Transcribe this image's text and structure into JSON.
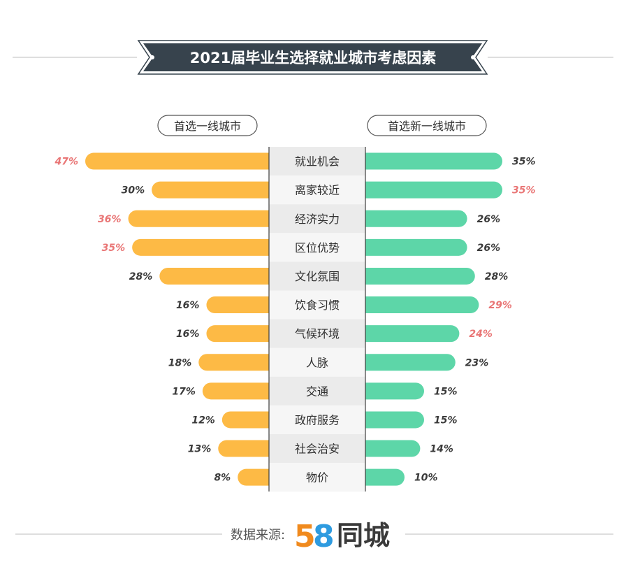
{
  "chart_data": {
    "type": "bar",
    "title": "2021届毕业生选择就业城市考虑因素",
    "categories": [
      "就业机会",
      "离家较近",
      "经济实力",
      "区位优势",
      "文化氛围",
      "饮食习惯",
      "气候环境",
      "人脉",
      "交通",
      "政府服务",
      "社会治安",
      "物价"
    ],
    "series": [
      {
        "name": "首选一线城市",
        "values": [
          47,
          30,
          36,
          35,
          28,
          16,
          16,
          18,
          17,
          12,
          13,
          8
        ],
        "labels": [
          "47%",
          "30%",
          "36%",
          "35%",
          "28%",
          "16%",
          "16%",
          "18%",
          "17%",
          "12%",
          "13%",
          "8%"
        ],
        "highlighted": [
          true,
          false,
          true,
          true,
          false,
          false,
          false,
          false,
          false,
          false,
          false,
          false
        ],
        "color": "#FDBA45"
      },
      {
        "name": "首选新一线城市",
        "values": [
          35,
          35,
          26,
          26,
          28,
          29,
          24,
          23,
          15,
          15,
          14,
          10
        ],
        "labels": [
          "35%",
          "35%",
          "26%",
          "26%",
          "28%",
          "29%",
          "24%",
          "23%",
          "15%",
          "15%",
          "14%",
          "10%"
        ],
        "highlighted": [
          false,
          true,
          false,
          false,
          false,
          true,
          true,
          false,
          false,
          false,
          false,
          false
        ],
        "color": "#5DD6A8"
      }
    ],
    "value_label_color": "#3A3A3A",
    "highlight_label_color": "#E97575",
    "title_banner_color": "#37434D",
    "category_band_colors": [
      "#EBEBEB",
      "#F6F6F6"
    ]
  },
  "footer": {
    "source_label": "数据来源:",
    "logo_digit_1": "5",
    "logo_digit_2": "8",
    "logo_text": "同城"
  }
}
